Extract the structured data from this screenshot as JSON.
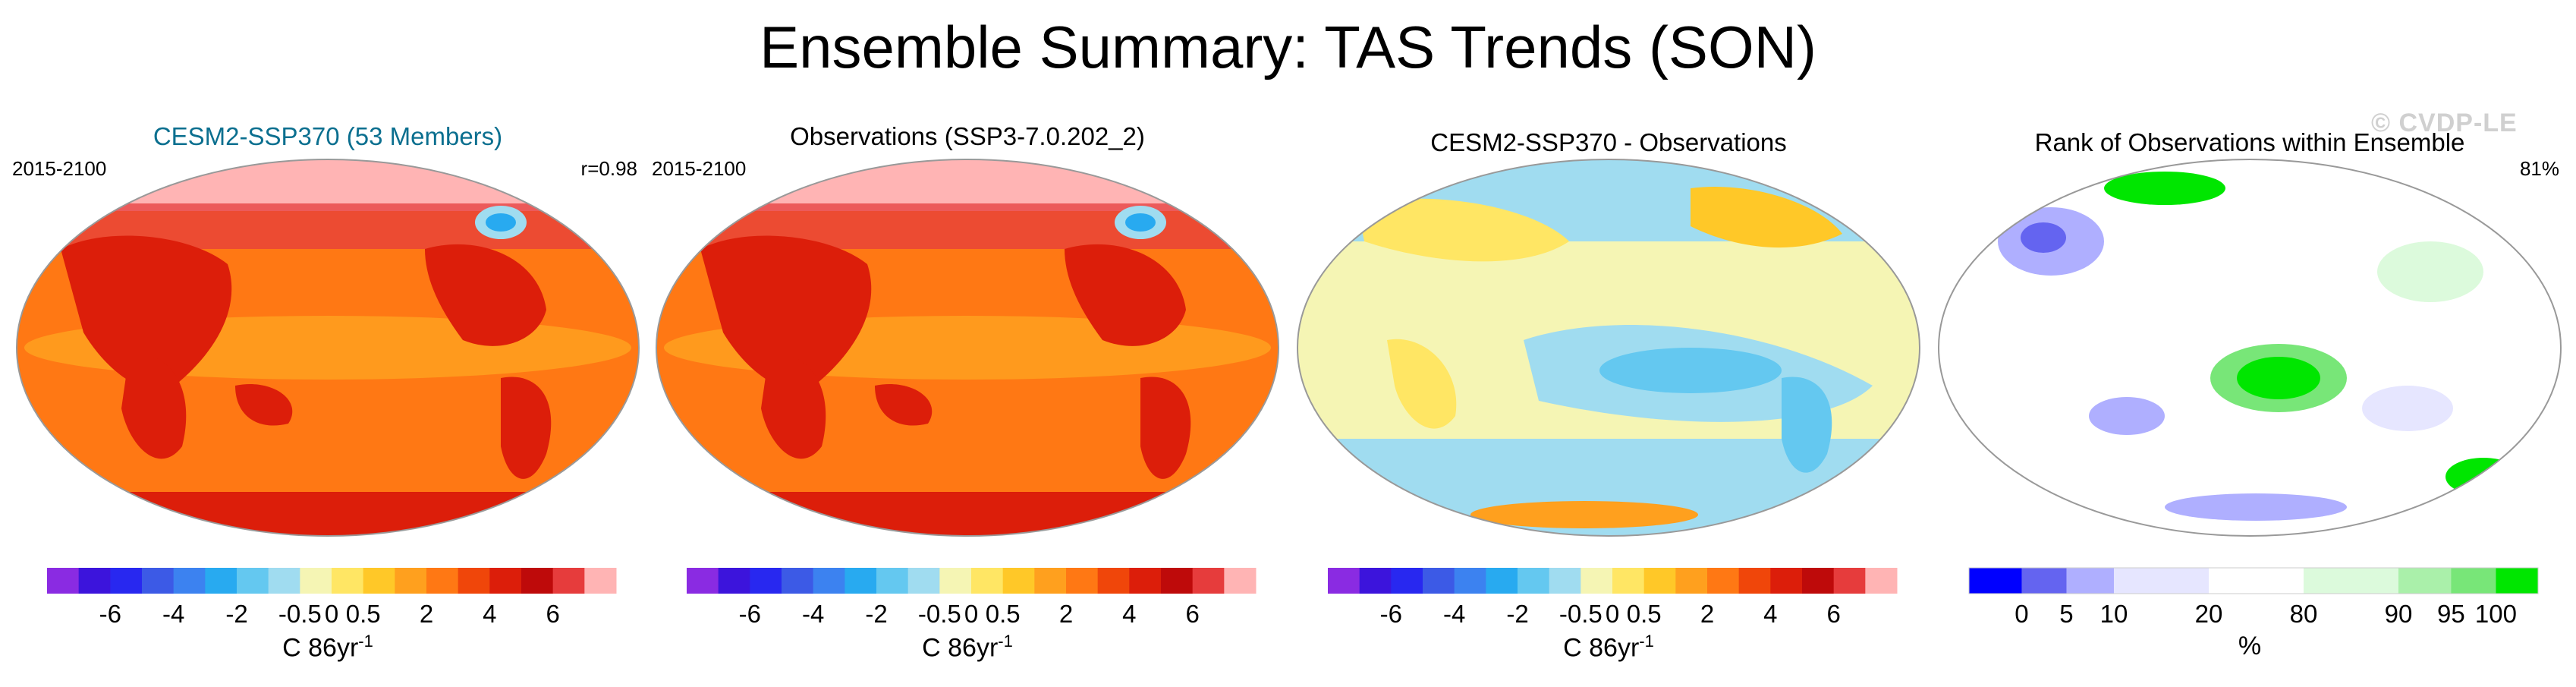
{
  "figure_title": "Ensemble Summary: TAS Trends (SON)",
  "watermark": "© CVDP-LE",
  "colors": {
    "diverging_scale": [
      "#8a2be2",
      "#3c14dc",
      "#2828f0",
      "#3c5ae6",
      "#3c82f0",
      "#28aaf0",
      "#64c8f0",
      "#a0dcf0",
      "#f5f5b4",
      "#ffe664",
      "#ffc828",
      "#ffa01e",
      "#ff7814",
      "#f0460a",
      "#dc1e0a",
      "#be0a0a",
      "#e63c3c",
      "#ffb4b4"
    ],
    "rank_scale": [
      "#0000ff",
      "#6464f0",
      "#afafff",
      "#e6e6ff",
      "#ffffff",
      "#dcfadc",
      "#aaf0aa",
      "#78e678",
      "#00e600"
    ],
    "panel_title_accent": "#0b6f8f"
  },
  "chart_data": [
    {
      "type": "heatmap",
      "title": "CESM2-SSP370 (53 Members)",
      "period": "2015-2100",
      "stat": "r=0.98",
      "colorbar_ticks": [
        "-6",
        "-4",
        "-2",
        "-0.5",
        "0",
        "0.5",
        "2",
        "4",
        "6"
      ],
      "colorbar_levels": [
        -8,
        -7,
        -6,
        -5,
        -4,
        -3,
        -2,
        -1,
        -0.5,
        0,
        0.5,
        1,
        2,
        3,
        4,
        5,
        6,
        7,
        8
      ],
      "colorbar_label": "C 86yr",
      "colorbar_label_exp": "-1",
      "dominant_values_C": {
        "ocean_tropics": 3,
        "land": 4.5,
        "arctic": 7.5,
        "north_atlantic_min": -2
      }
    },
    {
      "type": "heatmap",
      "title": "Observations (SSP3-7.0.202_2)",
      "period": "2015-2100",
      "colorbar_ticks": [
        "-6",
        "-4",
        "-2",
        "-0.5",
        "0",
        "0.5",
        "2",
        "4",
        "6"
      ],
      "colorbar_label": "C 86yr",
      "colorbar_label_exp": "-1",
      "dominant_values_C": {
        "ocean_tropics": 3,
        "land": 4.5,
        "arctic": 7.5,
        "north_atlantic_min": -2
      }
    },
    {
      "type": "heatmap",
      "title": "CESM2-SSP370 - Observations",
      "colorbar_ticks": [
        "-6",
        "-4",
        "-2",
        "-0.5",
        "0",
        "0.5",
        "2",
        "4",
        "6"
      ],
      "colorbar_label": "C 86yr",
      "colorbar_label_exp": "-1",
      "dominant_values_C": {
        "range_min": -0.5,
        "range_max": 0.5
      }
    },
    {
      "type": "heatmap",
      "title": "Rank of Observations within Ensemble",
      "stat": "81%",
      "colorbar_ticks": [
        "0",
        "5",
        "10",
        "20",
        "80",
        "90",
        "95",
        "100"
      ],
      "colorbar_levels": [
        0,
        5,
        10,
        20,
        80,
        90,
        95,
        100
      ],
      "colorbar_label": "%"
    }
  ]
}
